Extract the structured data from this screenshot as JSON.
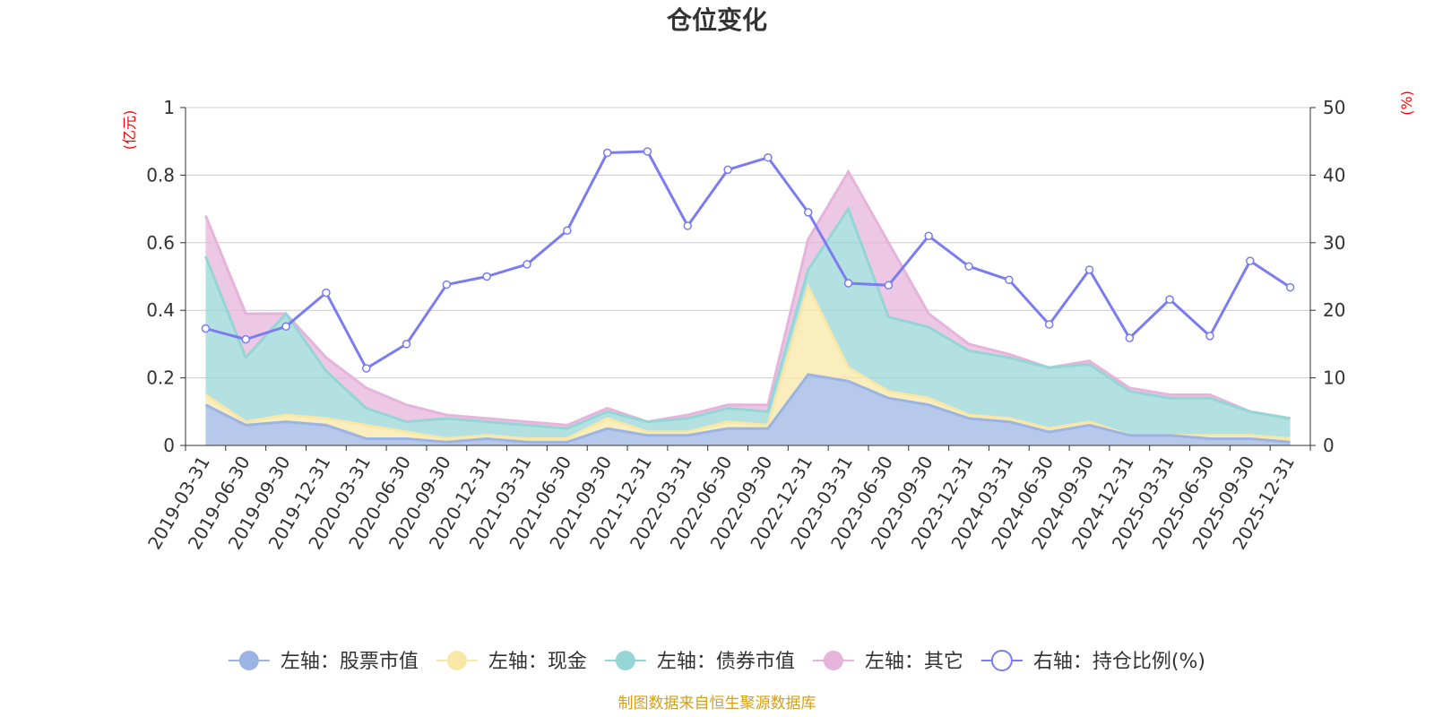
{
  "title": "仓位变化",
  "source": "制图数据来自恒生聚源数据库",
  "left_unit": "(亿元)",
  "right_unit": "(%)",
  "colors": {
    "stock": "#9bb4e3",
    "cash": "#f8e7a6",
    "bond": "#95d5d5",
    "other": "#e6b3db",
    "ratio": "#7a7cf0",
    "grid": "#cccccc",
    "axis": "#333333"
  },
  "chart_data": {
    "type": "area",
    "categories": [
      "2019-03-31",
      "2019-06-30",
      "2019-09-30",
      "2019-12-31",
      "2020-03-31",
      "2020-06-30",
      "2020-09-30",
      "2020-12-31",
      "2021-03-31",
      "2021-06-30",
      "2021-09-30",
      "2021-12-31",
      "2022-03-31",
      "2022-06-30",
      "2022-09-30",
      "2022-12-31",
      "2023-03-31",
      "2023-06-30",
      "2023-09-30",
      "2023-12-31",
      "2024-03-31",
      "2024-06-30",
      "2024-09-30",
      "2024-12-31",
      "2025-03-31",
      "2025-06-30",
      "2025-09-30",
      "2025-12-31"
    ],
    "left_axis": {
      "min": 0,
      "max": 1,
      "ticks": [
        "0",
        "0.2",
        "0.4",
        "0.6",
        "0.8",
        "1"
      ]
    },
    "right_axis": {
      "min": 0,
      "max": 50,
      "ticks": [
        "0",
        "10",
        "20",
        "30",
        "40",
        "50"
      ]
    },
    "stacked_series_cumulative_tops": true,
    "series": [
      {
        "name": "左轴：股票市值",
        "key": "stock",
        "axis": "left",
        "stack_top": [
          0.12,
          0.06,
          0.07,
          0.06,
          0.02,
          0.02,
          0.01,
          0.02,
          0.01,
          0.01,
          0.05,
          0.03,
          0.03,
          0.05,
          0.05,
          0.21,
          0.19,
          0.14,
          0.12,
          0.08,
          0.07,
          0.04,
          0.06,
          0.03,
          0.03,
          0.02,
          0.02,
          0.01
        ]
      },
      {
        "name": "左轴：现金",
        "key": "cash",
        "axis": "left",
        "stack_top": [
          0.15,
          0.07,
          0.09,
          0.08,
          0.06,
          0.04,
          0.02,
          0.03,
          0.02,
          0.02,
          0.08,
          0.04,
          0.04,
          0.07,
          0.06,
          0.47,
          0.23,
          0.16,
          0.14,
          0.09,
          0.08,
          0.05,
          0.07,
          0.03,
          0.03,
          0.03,
          0.03,
          0.02
        ]
      },
      {
        "name": "左轴：债券市值",
        "key": "bond",
        "axis": "left",
        "stack_top": [
          0.56,
          0.26,
          0.39,
          0.22,
          0.11,
          0.07,
          0.08,
          0.07,
          0.06,
          0.05,
          0.1,
          0.07,
          0.08,
          0.11,
          0.1,
          0.52,
          0.7,
          0.38,
          0.35,
          0.28,
          0.26,
          0.23,
          0.24,
          0.16,
          0.14,
          0.14,
          0.1,
          0.08
        ]
      },
      {
        "name": "左轴：其它",
        "key": "other",
        "axis": "left",
        "stack_top": [
          0.68,
          0.39,
          0.39,
          0.26,
          0.17,
          0.12,
          0.09,
          0.08,
          0.07,
          0.06,
          0.11,
          0.07,
          0.09,
          0.12,
          0.12,
          0.61,
          0.81,
          0.6,
          0.39,
          0.3,
          0.27,
          0.23,
          0.25,
          0.17,
          0.15,
          0.15,
          0.1,
          0.08
        ]
      },
      {
        "name": "右轴：持仓比例(%)",
        "key": "ratio",
        "axis": "right",
        "values": [
          17.3,
          15.7,
          17.6,
          22.6,
          11.4,
          15.0,
          23.8,
          25.0,
          26.8,
          31.8,
          43.3,
          43.5,
          32.5,
          40.8,
          42.6,
          34.5,
          24.0,
          23.7,
          31.0,
          26.5,
          24.5,
          17.9,
          26.0,
          15.9,
          21.6,
          16.2,
          27.3,
          23.4
        ]
      }
    ]
  },
  "legend": [
    {
      "label": "左轴：股票市值",
      "key": "stock",
      "style": "filled"
    },
    {
      "label": "左轴：现金",
      "key": "cash",
      "style": "filled"
    },
    {
      "label": "左轴：债券市值",
      "key": "bond",
      "style": "filled"
    },
    {
      "label": "左轴：其它",
      "key": "other",
      "style": "filled"
    },
    {
      "label": "右轴：持仓比例(%)",
      "key": "ratio",
      "style": "hollow"
    }
  ]
}
